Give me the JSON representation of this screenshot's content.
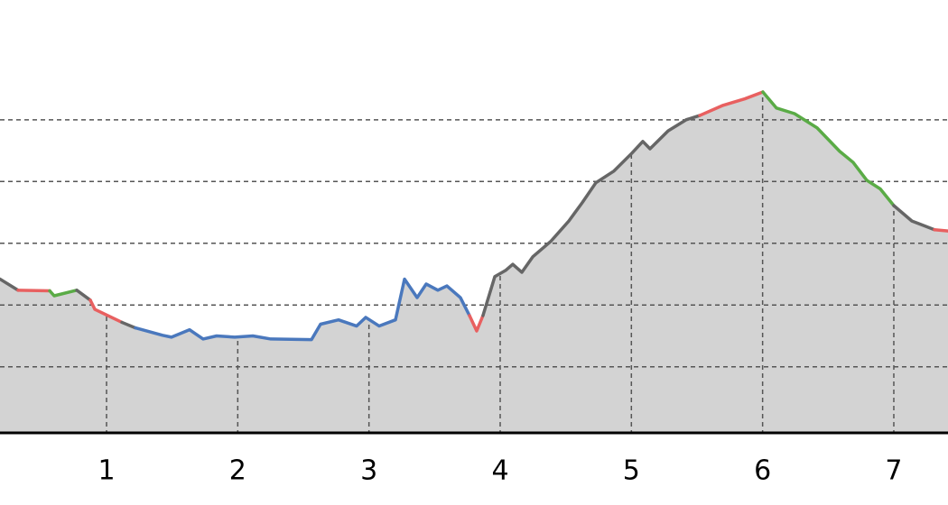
{
  "chart_data": {
    "type": "area",
    "x": [
      0.188,
      0.326,
      0.567,
      0.601,
      0.773,
      0.876,
      0.911,
      1.117,
      1.22,
      1.427,
      1.495,
      1.633,
      1.736,
      1.839,
      1.977,
      2.115,
      2.252,
      2.562,
      2.631,
      2.768,
      2.906,
      2.975,
      3.078,
      3.202,
      3.271,
      3.367,
      3.436,
      3.525,
      3.594,
      3.697,
      3.766,
      3.821,
      3.869,
      3.959,
      4.041,
      4.096,
      4.165,
      4.248,
      4.385,
      4.523,
      4.626,
      4.729,
      4.867,
      5.004,
      5.087,
      5.142,
      5.28,
      5.417,
      5.521,
      5.693,
      5.865,
      6.002,
      6.106,
      6.243,
      6.415,
      6.587,
      6.69,
      6.794,
      6.897,
      7.0,
      7.138,
      7.31,
      7.413
    ],
    "values": [
      2.42,
      2.24,
      2.23,
      2.15,
      2.24,
      2.08,
      1.93,
      1.72,
      1.63,
      1.51,
      1.48,
      1.6,
      1.45,
      1.5,
      1.48,
      1.5,
      1.45,
      1.44,
      1.69,
      1.76,
      1.66,
      1.8,
      1.66,
      1.76,
      2.42,
      2.12,
      2.34,
      2.24,
      2.31,
      2.12,
      1.83,
      1.58,
      1.83,
      2.46,
      2.56,
      2.66,
      2.53,
      2.78,
      3.03,
      3.36,
      3.66,
      3.98,
      4.17,
      4.46,
      4.65,
      4.53,
      4.82,
      5.0,
      5.07,
      5.23,
      5.34,
      5.45,
      5.19,
      5.1,
      4.87,
      4.49,
      4.31,
      4.02,
      3.88,
      3.61,
      3.36,
      3.22,
      3.2
    ],
    "segment_colors": [
      "#666666",
      "#e86060",
      "#5aab46",
      "#5aab46",
      "#666666",
      "#e86060",
      "#e86060",
      "#666666",
      "#4a78bd",
      "#4a78bd",
      "#4a78bd",
      "#4a78bd",
      "#4a78bd",
      "#4a78bd",
      "#4a78bd",
      "#4a78bd",
      "#4a78bd",
      "#4a78bd",
      "#4a78bd",
      "#4a78bd",
      "#4a78bd",
      "#4a78bd",
      "#4a78bd",
      "#4a78bd",
      "#4a78bd",
      "#4a78bd",
      "#4a78bd",
      "#4a78bd",
      "#4a78bd",
      "#4a78bd",
      "#e86060",
      "#e86060",
      "#666666",
      "#666666",
      "#666666",
      "#666666",
      "#666666",
      "#666666",
      "#666666",
      "#666666",
      "#666666",
      "#666666",
      "#666666",
      "#666666",
      "#666666",
      "#666666",
      "#666666",
      "#666666",
      "#e86060",
      "#e86060",
      "#e86060",
      "#5aab46",
      "#5aab46",
      "#5aab46",
      "#5aab46",
      "#5aab46",
      "#5aab46",
      "#5aab46",
      "#5aab46",
      "#666666",
      "#666666",
      "#e86060"
    ],
    "fill_color": "#d3d3d3",
    "xlim": [
      0.188,
      7.413
    ],
    "xticks": [
      1,
      2,
      3,
      4,
      5,
      6,
      7
    ],
    "ylim": [
      -0.07,
      6.94
    ],
    "yticks": [
      1,
      2,
      3,
      4,
      5
    ],
    "grid": true
  }
}
